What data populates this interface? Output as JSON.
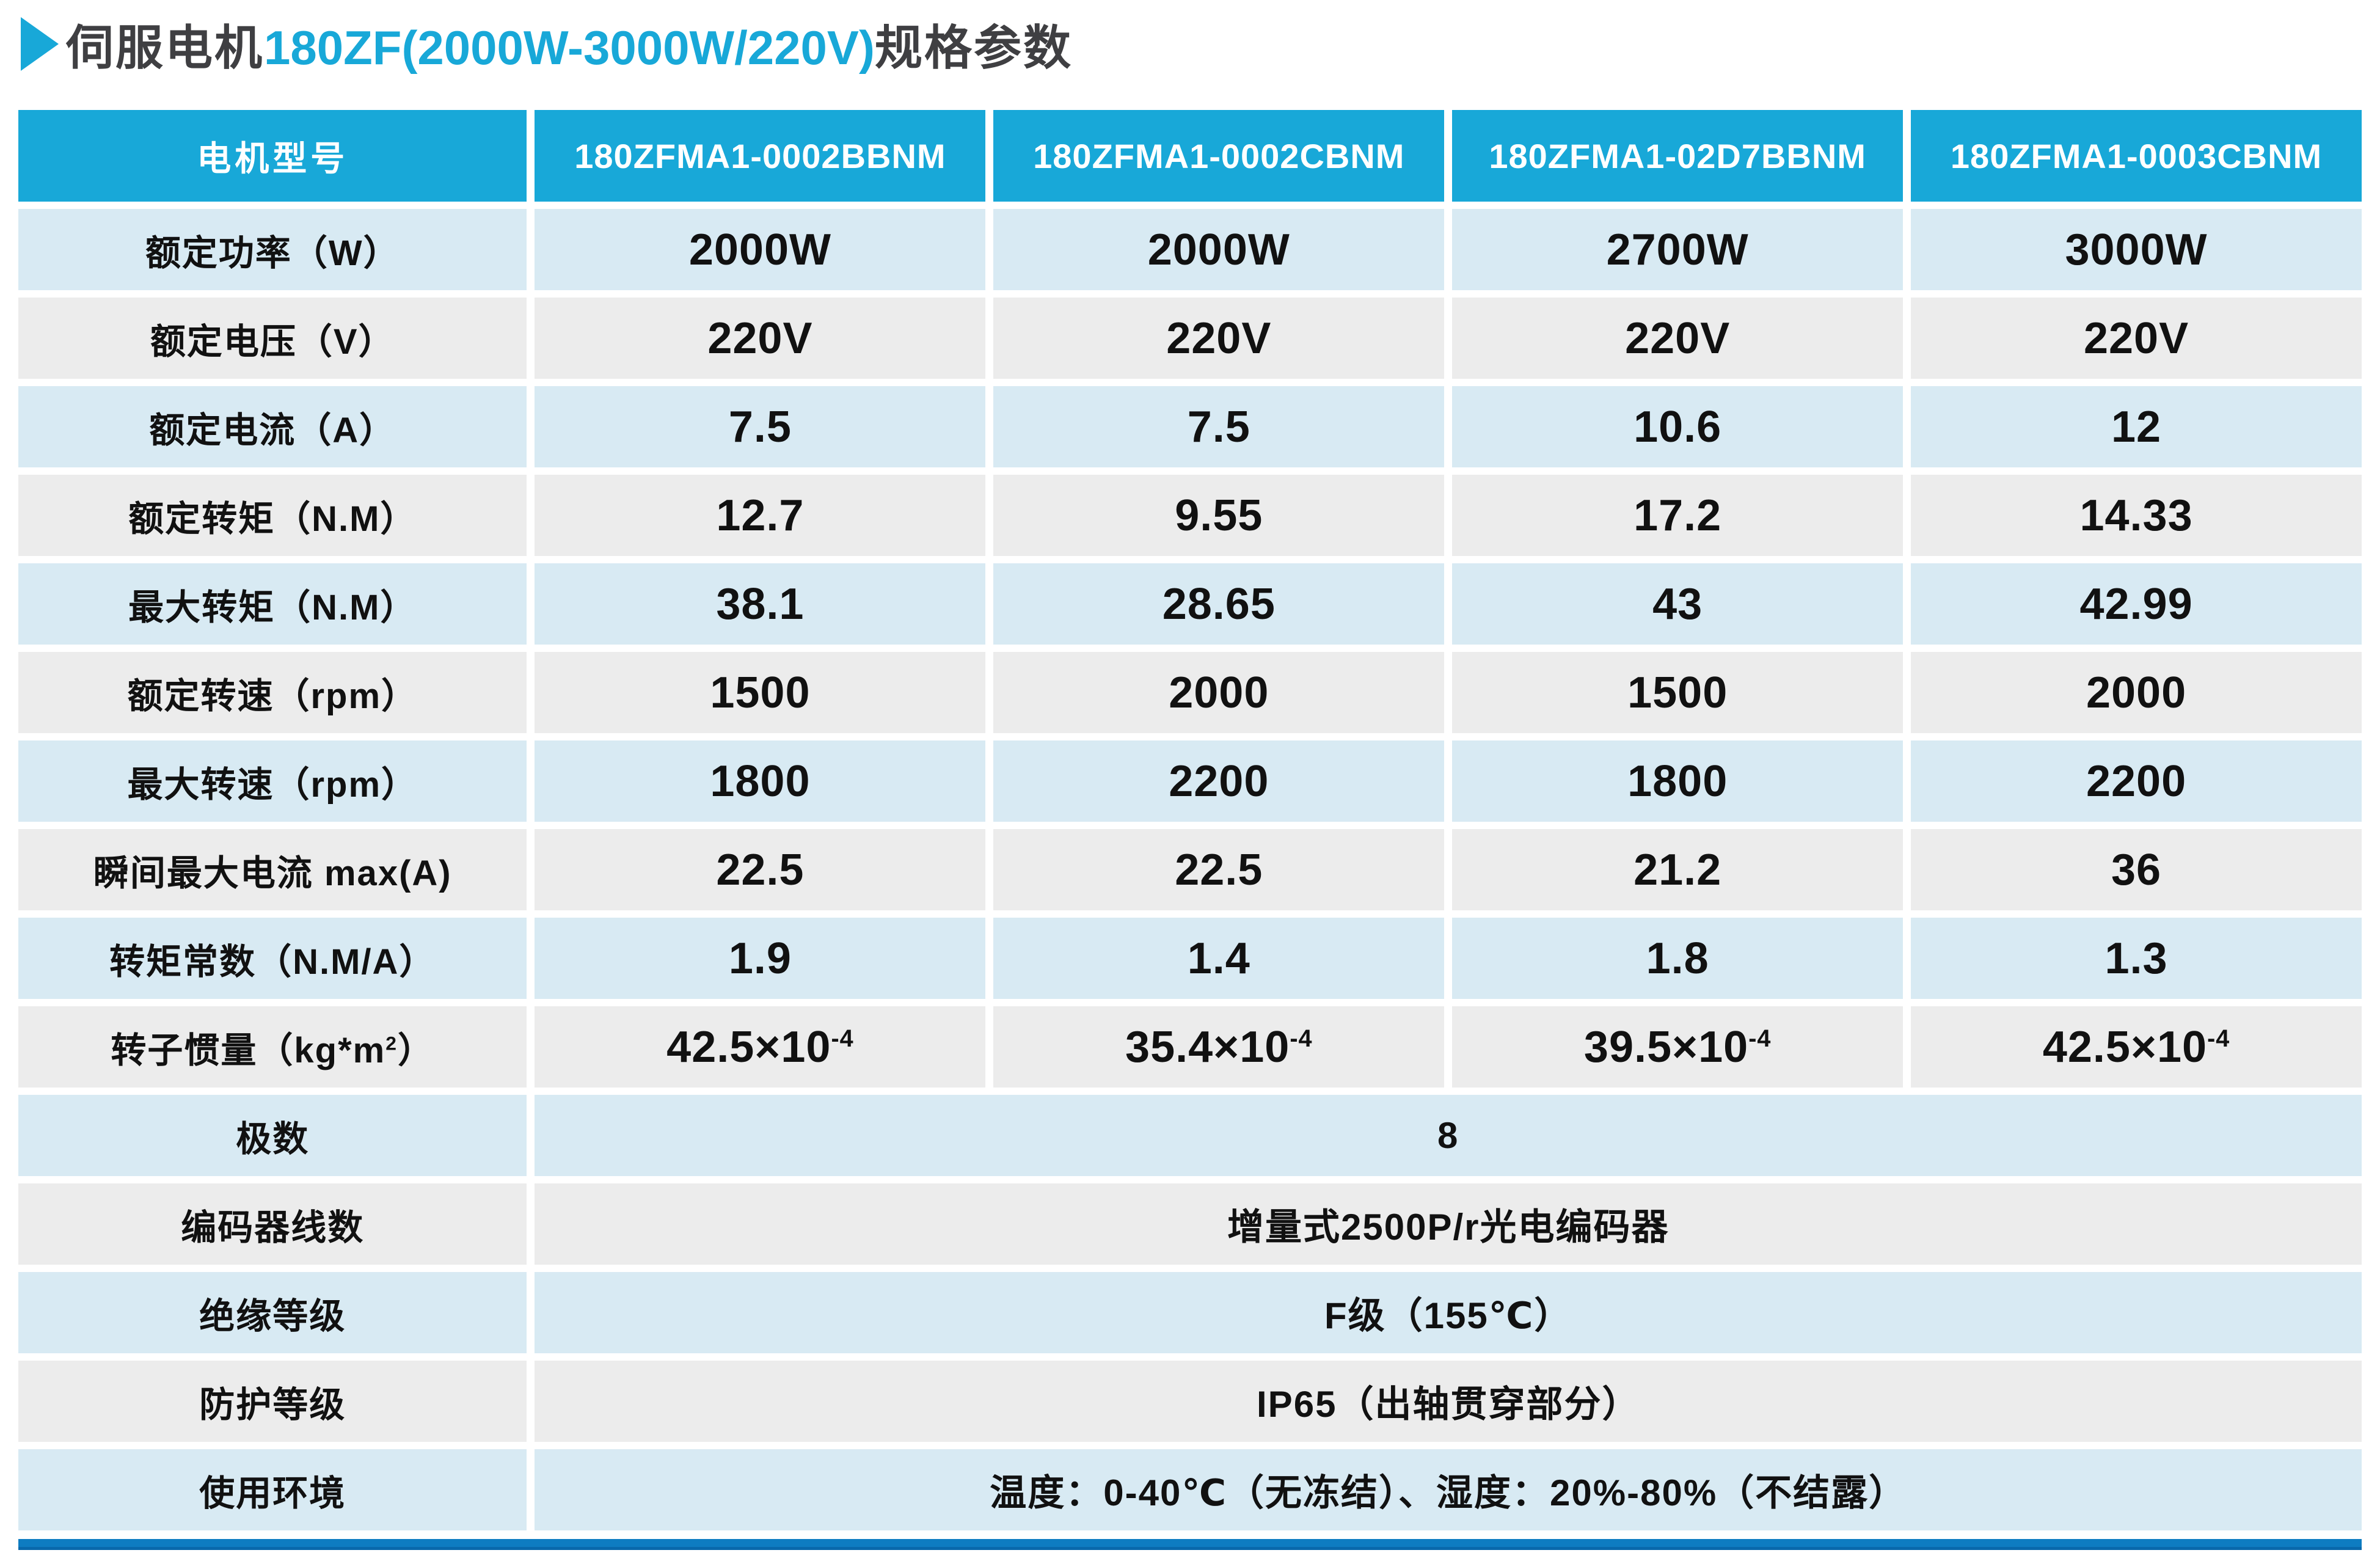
{
  "title": {
    "arrow_icon": "right-triangle",
    "prefix": "伺服电机",
    "highlight": "180ZF(2000W-3000W/220V)",
    "suffix": "规格参数"
  },
  "colors": {
    "accent_cyan": "#18a8d8",
    "header_blue": "#18a8d8",
    "row_blue": "#d8eaf3",
    "row_gray": "#ececec",
    "bottom_bar_blue": "#0e7cc1",
    "bottom_bar_dark_blue": "#0968ab",
    "title_text": "#3f3f42"
  },
  "table": {
    "header": {
      "label": "电机型号",
      "models": [
        "180ZFMA1-0002BBNM",
        "180ZFMA1-0002CBNM",
        "180ZFMA1-02D7BBNM",
        "180ZFMA1-0003CBNM"
      ]
    },
    "rows": [
      {
        "label": "额定功率（W）",
        "values": [
          "2000W",
          "2000W",
          "2700W",
          "3000W"
        ]
      },
      {
        "label": "额定电压（V）",
        "values": [
          "220V",
          "220V",
          "220V",
          "220V"
        ]
      },
      {
        "label": "额定电流（A）",
        "values": [
          "7.5",
          "7.5",
          "10.6",
          "12"
        ]
      },
      {
        "label": "额定转矩（N.M）",
        "values": [
          "12.7",
          "9.55",
          "17.2",
          "14.33"
        ]
      },
      {
        "label": "最大转矩（N.M）",
        "values": [
          "38.1",
          "28.65",
          "43",
          "42.99"
        ]
      },
      {
        "label": "额定转速（rpm）",
        "values": [
          "1500",
          "2000",
          "1500",
          "2000"
        ]
      },
      {
        "label": "最大转速（rpm）",
        "values": [
          "1800",
          "2200",
          "1800",
          "2200"
        ]
      },
      {
        "label": "瞬间最大电流 max(A)",
        "values": [
          "22.5",
          "22.5",
          "21.2",
          "36"
        ]
      },
      {
        "label": "转矩常数（N.M/A）",
        "values": [
          "1.9",
          "1.4",
          "1.8",
          "1.3"
        ]
      },
      {
        "label": "转子惯量（kg*m^2）",
        "values": [
          "42.5×10^-4",
          "35.4×10^-4",
          "39.5×10^-4",
          "42.5×10^-4"
        ]
      },
      {
        "label": "极数",
        "merged": "8"
      },
      {
        "label": "编码器线数",
        "merged": "增量式2500P/r光电编码器"
      },
      {
        "label": "绝缘等级",
        "merged": "F级（155℃）"
      },
      {
        "label": "防护等级",
        "merged": "IP65（出轴贯穿部分）"
      },
      {
        "label": "使用环境",
        "merged": "温度：0-40℃（无冻结）、湿度：20%-80%（不结露）"
      }
    ]
  }
}
